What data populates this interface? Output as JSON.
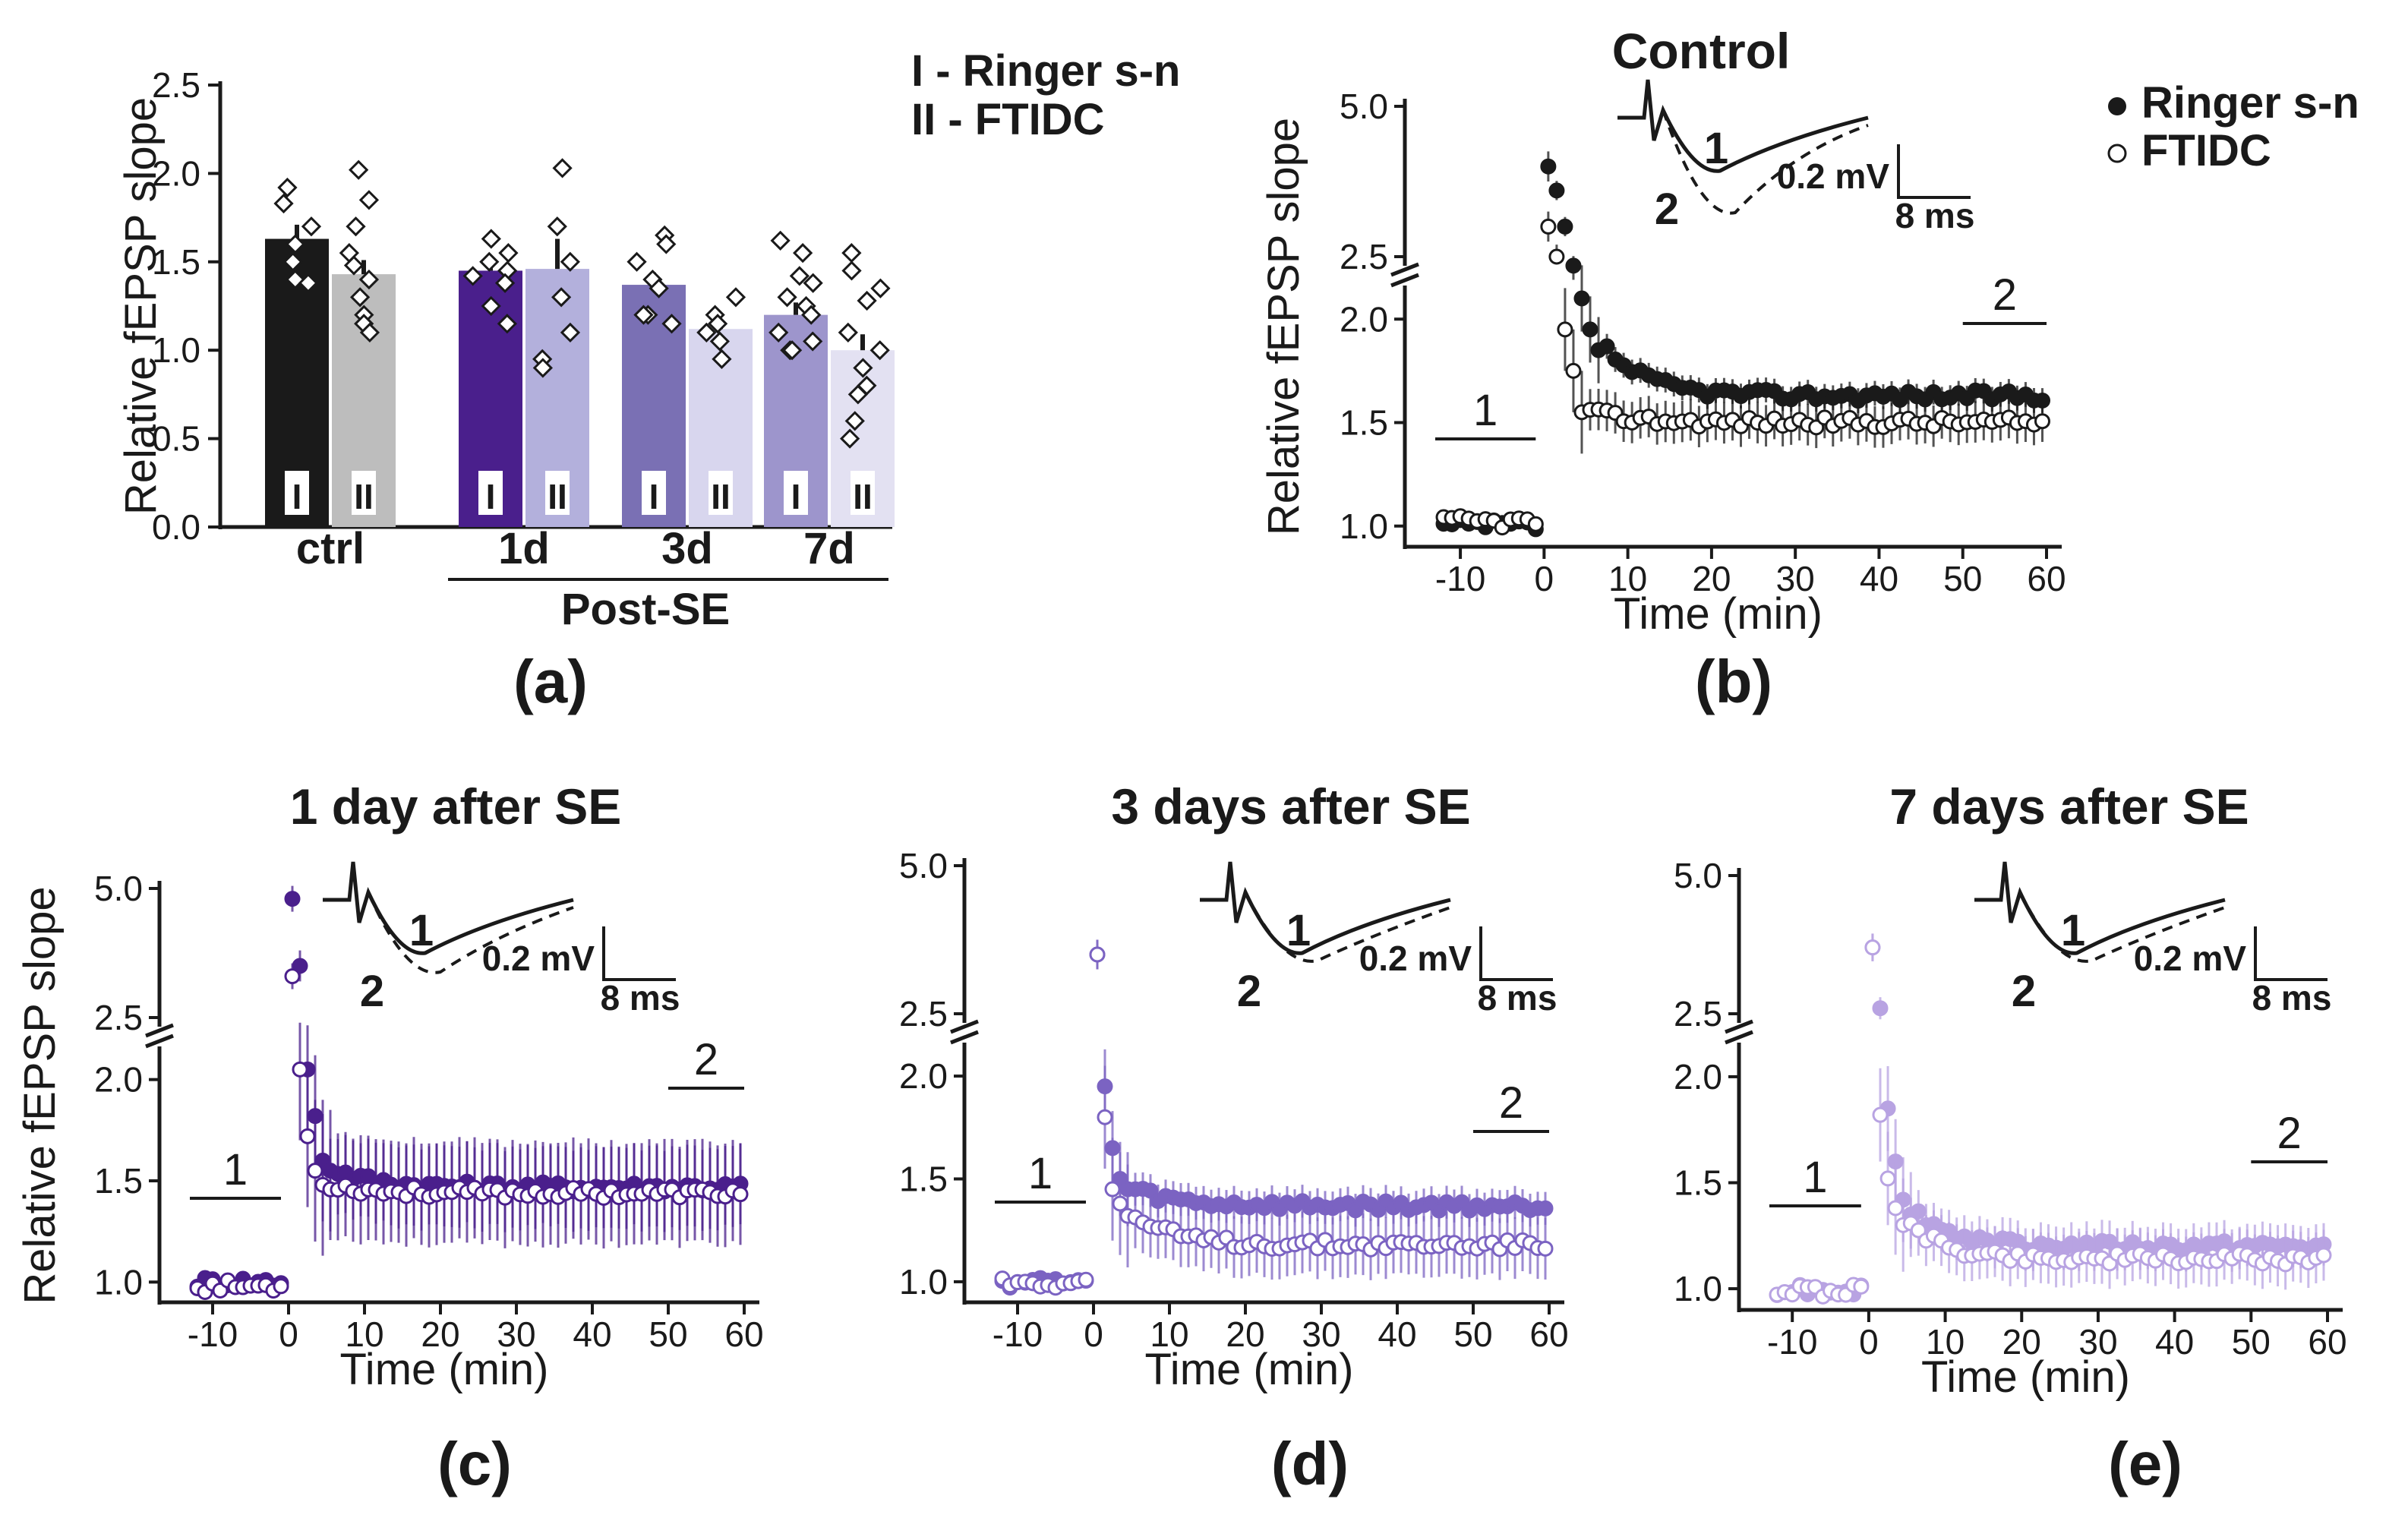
{
  "colors": {
    "black": "#1a1a1a",
    "gray": "#bdbdbd",
    "purple_dark": "#4a1f8c",
    "lavender_dark": "#b3b0dc",
    "purple_mid": "#7a70b4",
    "lavender_mid": "#d8d6ee",
    "purple_light": "#9d95cc",
    "lavender_light": "#e3e1f2",
    "purple_d_series": "#7b63c2",
    "purple_e_series": "#b8a3e2"
  },
  "chart_data": [
    {
      "panel": "(a)",
      "type": "bar",
      "title": "",
      "ylabel": "Relative fEPSP slope",
      "ylim": [
        0,
        2.5
      ],
      "yticks": [
        "0.0",
        "0.5",
        "1.0",
        "1.5",
        "2.0",
        "2.5"
      ],
      "categories": [
        "ctrl",
        "1d",
        "3d",
        "7d"
      ],
      "group_label": "Post-SE",
      "legend": [
        "I - Ringer s-n",
        "II - FTIDC"
      ],
      "bar_marks": [
        "I",
        "II"
      ],
      "series": [
        {
          "name": "I - Ringer s-n",
          "values": [
            1.63,
            1.45,
            1.37,
            1.2
          ],
          "errors": [
            0.08,
            0.06,
            0.07,
            0.07
          ],
          "points": [
            [
              1.92,
              1.83,
              1.7,
              1.6,
              1.5,
              1.4,
              1.38
            ],
            [
              1.63,
              1.55,
              1.5,
              1.45,
              1.42,
              1.38,
              1.25,
              1.15
            ],
            [
              1.65,
              1.6,
              1.5,
              1.4,
              1.35,
              1.2,
              1.2,
              1.15
            ],
            [
              1.62,
              1.55,
              1.42,
              1.38,
              1.3,
              1.25,
              1.2,
              1.1,
              1.05,
              1.0,
              1.0
            ]
          ]
        },
        {
          "name": "II - FTIDC",
          "values": [
            1.43,
            1.46,
            1.12,
            1.0
          ],
          "errors": [
            0.08,
            0.17,
            0.04,
            0.09
          ],
          "points": [
            [
              2.02,
              1.85,
              1.7,
              1.55,
              1.48,
              1.4,
              1.3,
              1.2,
              1.15,
              1.1
            ],
            [
              2.03,
              1.7,
              1.5,
              1.3,
              1.1,
              0.95,
              0.9
            ],
            [
              1.3,
              1.2,
              1.15,
              1.1,
              1.05,
              0.95
            ],
            [
              1.55,
              1.45,
              1.35,
              1.28,
              1.1,
              1.0,
              0.9,
              0.8,
              0.75,
              0.6,
              0.5
            ]
          ]
        }
      ]
    },
    {
      "panel": "(b)",
      "type": "scatter",
      "title": "Control",
      "xlabel": "Time (min)",
      "ylabel": "Relative fEPSP slope",
      "xlim": [
        -13,
        60
      ],
      "xticks": [
        "-10",
        "0",
        "10",
        "20",
        "30",
        "40",
        "50",
        "60"
      ],
      "yticks_lower": [
        "1.0",
        "1.5",
        "2.0"
      ],
      "yticks_upper": [
        "2.5",
        "5.0"
      ],
      "legend": [
        "Ringer s-n",
        "FTIDC"
      ],
      "bar_labels": [
        "1",
        "2"
      ],
      "inset": {
        "trace_labels": [
          "1",
          "2"
        ],
        "scale_v": "0.2 mV",
        "scale_t": "8 ms"
      },
      "series": [
        {
          "name": "Ringer s-n",
          "post_start": 4.0,
          "early": [
            3.6,
            3.0,
            2.35,
            2.1,
            1.95,
            1.85
          ],
          "plateau": 1.63,
          "baseline": 1.0,
          "err": 0.06
        },
        {
          "name": "FTIDC",
          "post_start": 3.0,
          "early": [
            2.5,
            1.95,
            1.75,
            1.55
          ],
          "plateau": 1.5,
          "baseline": 1.02,
          "err": 0.1
        }
      ]
    },
    {
      "panel": "(c)",
      "type": "scatter",
      "title": "1 day after SE",
      "xlabel": "Time (min)",
      "ylabel": "Relative fEPSP slope",
      "xlim": [
        -13,
        60
      ],
      "xticks": [
        "-10",
        "0",
        "10",
        "20",
        "30",
        "40",
        "50",
        "60"
      ],
      "yticks_lower": [
        "1.0",
        "1.5",
        "2.0"
      ],
      "yticks_upper": [
        "2.5",
        "5.0"
      ],
      "bar_labels": [
        "1",
        "2"
      ],
      "inset": {
        "trace_labels": [
          "1",
          "2"
        ],
        "scale_v": "0.2 mV",
        "scale_t": "8 ms"
      },
      "series": [
        {
          "name": "Ringer s-n",
          "post_start": 4.8,
          "early": [
            3.5,
            2.05,
            1.82,
            1.6,
            1.55
          ],
          "plateau": 1.47,
          "baseline": 1.0,
          "err": 0.2
        },
        {
          "name": "FTIDC",
          "post_start": 3.3,
          "early": [
            2.05,
            1.72,
            1.55,
            1.48
          ],
          "plateau": 1.44,
          "baseline": 0.98,
          "err": 0.25
        }
      ]
    },
    {
      "panel": "(d)",
      "type": "scatter",
      "title": "3 days after SE",
      "xlabel": "Time (min)",
      "ylabel": "",
      "xlim": [
        -13,
        60
      ],
      "xticks": [
        "-10",
        "0",
        "10",
        "20",
        "30",
        "40",
        "50",
        "60"
      ],
      "yticks_lower": [
        "1.0",
        "1.5",
        "2.0"
      ],
      "yticks_upper": [
        "2.5",
        "5.0"
      ],
      "bar_labels": [
        "1",
        "2"
      ],
      "inset": {
        "trace_labels": [
          "1",
          "2"
        ],
        "scale_v": "0.2 mV",
        "scale_t": "8 ms"
      },
      "series": [
        {
          "name": "Ringer s-n",
          "post_start": 3.5,
          "early": [
            1.95,
            1.65,
            1.5,
            1.45
          ],
          "plateau": 1.37,
          "baseline": 1.0,
          "err": 0.08
        },
        {
          "name": "FTIDC",
          "post_start": 3.5,
          "early": [
            1.8,
            1.45,
            1.38,
            1.32
          ],
          "plateau": 1.18,
          "baseline": 1.0,
          "err": 0.15
        }
      ]
    },
    {
      "panel": "(e)",
      "type": "scatter",
      "title": "7 days after SE",
      "xlabel": "Time (min)",
      "ylabel": "",
      "xlim": [
        -13,
        60
      ],
      "xticks": [
        "-10",
        "0",
        "10",
        "20",
        "30",
        "40",
        "50",
        "60"
      ],
      "yticks_lower": [
        "1.0",
        "1.5",
        "2.0"
      ],
      "yticks_upper": [
        "2.5",
        "5.0"
      ],
      "bar_labels": [
        "1",
        "2"
      ],
      "inset": {
        "trace_labels": [
          "1",
          "2"
        ],
        "scale_v": "0.2 mV",
        "scale_t": "8 ms"
      },
      "series": [
        {
          "name": "Ringer s-n",
          "post_start": 3.7,
          "early": [
            2.6,
            1.85,
            1.6,
            1.42,
            1.35
          ],
          "plateau": 1.2,
          "baseline": 1.0,
          "err": 0.1
        },
        {
          "name": "FTIDC",
          "post_start": 3.7,
          "early": [
            1.82,
            1.52,
            1.38,
            1.3
          ],
          "plateau": 1.14,
          "baseline": 0.99,
          "err": 0.12
        }
      ]
    }
  ]
}
